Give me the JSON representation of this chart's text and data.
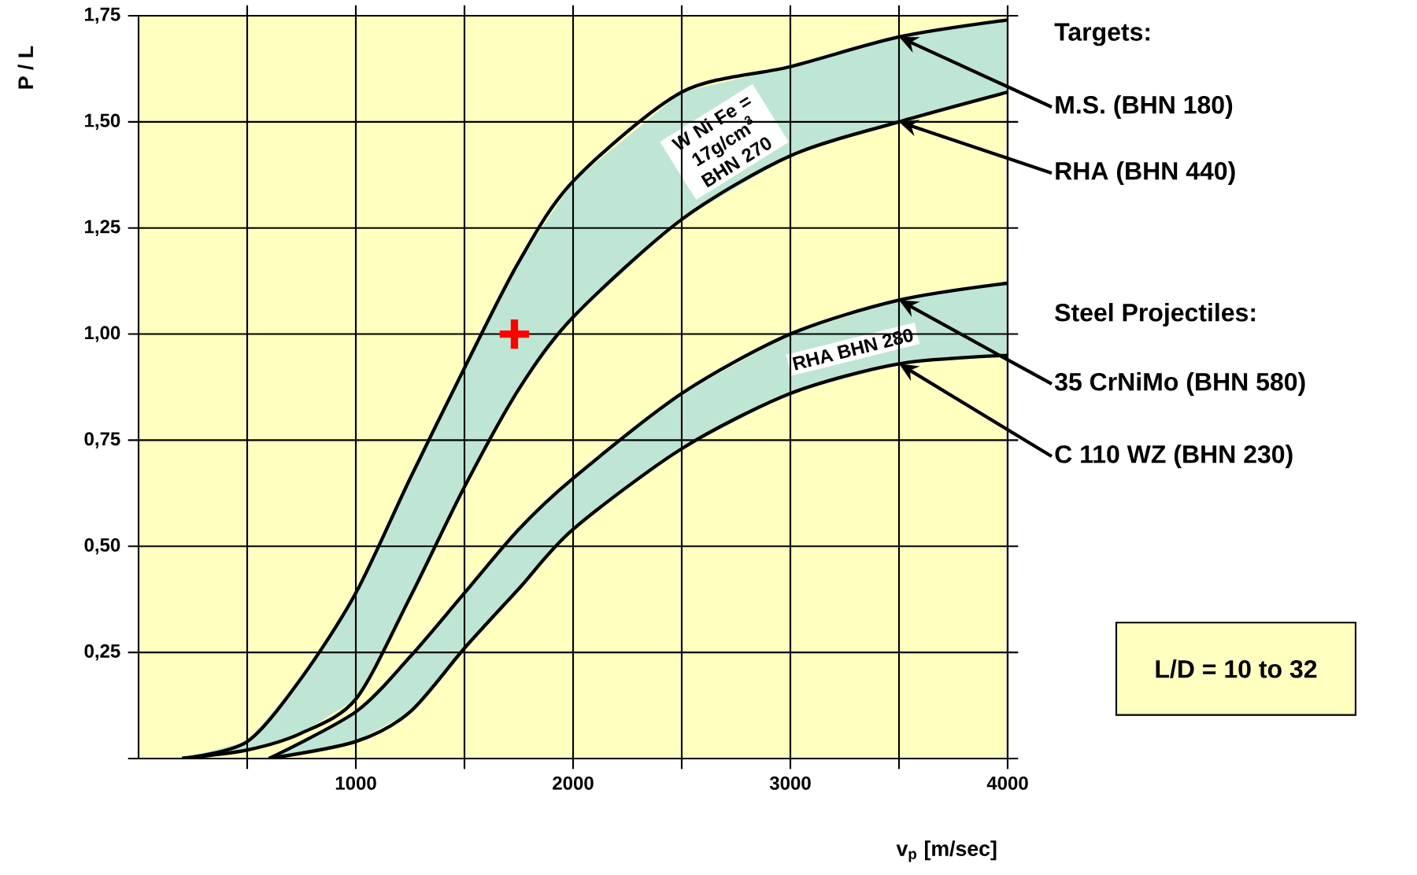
{
  "chart_data": {
    "type": "line",
    "xlabel": "v$_{p}$ [m/sec]",
    "ylabel": "P / L",
    "xlim": [
      0,
      4000
    ],
    "ylim": [
      0,
      1.75
    ],
    "xticks": [
      {
        "value": 500,
        "label": null
      },
      1000,
      {
        "value": 1500,
        "label": null
      },
      2000,
      {
        "value": 2500,
        "label": null
      },
      3000,
      {
        "value": 3500,
        "label": null
      },
      4000
    ],
    "yticks": [
      {
        "value": 0,
        "label": null
      },
      {
        "value": 0.25,
        "label": "0,25"
      },
      {
        "value": 0.5,
        "label": "0,50"
      },
      {
        "value": 0.75,
        "label": "0,75"
      },
      {
        "value": 1.0,
        "label": "1,00"
      },
      {
        "value": 1.25,
        "label": "1,25"
      },
      {
        "value": 1.5,
        "label": "1,50"
      },
      {
        "value": 1.75,
        "label": "1,75"
      }
    ],
    "grid": true,
    "legend": "right",
    "series": [
      {
        "name": "M.S. (BHN 180)",
        "color": "#000000",
        "x": [
          200,
          500,
          750,
          1000,
          1250,
          1500,
          1750,
          2000,
          2500,
          3000,
          3500,
          4000
        ],
        "values": [
          0,
          0.04,
          0.19,
          0.39,
          0.66,
          0.92,
          1.17,
          1.36,
          1.57,
          1.63,
          1.7,
          1.74
        ]
      },
      {
        "name": "RHA (BHN 440)",
        "color": "#000000",
        "x": [
          200,
          500,
          750,
          1000,
          1250,
          1500,
          1750,
          2000,
          2500,
          3000,
          3500,
          4000
        ],
        "values": [
          0,
          0.02,
          0.06,
          0.14,
          0.38,
          0.64,
          0.87,
          1.04,
          1.27,
          1.42,
          1.5,
          1.57
        ]
      },
      {
        "name": "35 CrNiMo (BHN 580)",
        "color": "#000000",
        "x": [
          600,
          1000,
          1250,
          1500,
          1750,
          2000,
          2500,
          3000,
          3500,
          4000
        ],
        "values": [
          0,
          0.11,
          0.24,
          0.39,
          0.54,
          0.66,
          0.86,
          1.0,
          1.08,
          1.12
        ]
      },
      {
        "name": "C 110 WZ   (BHN 230)",
        "color": "#000000",
        "x": [
          600,
          1000,
          1250,
          1500,
          1750,
          2000,
          2500,
          3000,
          3500,
          4000
        ],
        "values": [
          0,
          0.04,
          0.11,
          0.26,
          0.4,
          0.54,
          0.73,
          0.86,
          0.93,
          0.95
        ]
      },
      {
        "type": "scatter",
        "color": "#ff0000",
        "marker": "cross",
        "x": [
          1730
        ],
        "values": [
          1.0
        ]
      }
    ],
    "annotations": [
      "Targets:",
      "Steel Projectiles:",
      "L/D = 10 to 32",
      "W Ni Fe = 17g/cm$^{3}$ BHN 270",
      "RHA BHN 280"
    ]
  }
}
